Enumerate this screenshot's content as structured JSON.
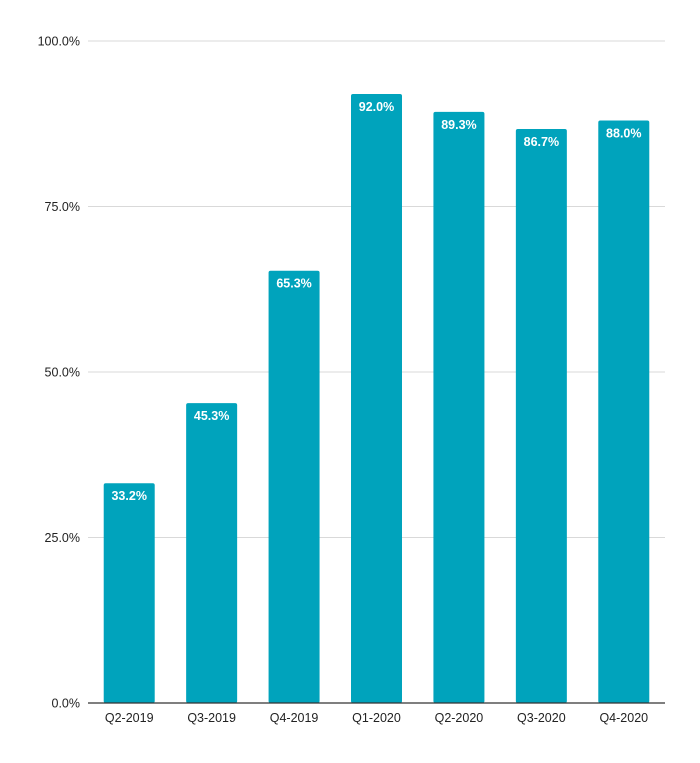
{
  "chart_data": {
    "type": "bar",
    "categories": [
      "Q2-2019",
      "Q3-2019",
      "Q4-2019",
      "Q1-2020",
      "Q2-2020",
      "Q3-2020",
      "Q4-2020"
    ],
    "values": [
      33.2,
      45.3,
      65.3,
      92.0,
      89.3,
      86.7,
      88.0
    ],
    "data_labels": [
      "33.2%",
      "45.3%",
      "65.3%",
      "92.0%",
      "89.3%",
      "86.7%",
      "88.0%"
    ],
    "y_ticks": [
      0,
      25,
      50,
      75,
      100
    ],
    "y_tick_labels": [
      "0.0%",
      "25.0%",
      "50.0%",
      "75.0%",
      "100.0%"
    ],
    "ylim": [
      0,
      100
    ],
    "title": "",
    "xlabel": "",
    "ylabel": "",
    "grid": true,
    "legend": "none",
    "colors": {
      "bar": "#00A3BC",
      "grid": "#d9d9d9",
      "axis": "#333333",
      "tick_text": "#222222",
      "data_label": "#ffffff"
    }
  }
}
